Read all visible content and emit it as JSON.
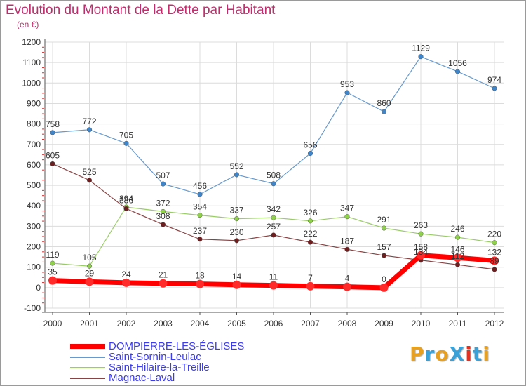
{
  "header": {
    "title": "Evolution du Montant de la Dette par Habitant",
    "unit": "(en €)"
  },
  "logo": {
    "text": "ProXiti",
    "colors": [
      "#e8a020",
      "#3aa0d8",
      "#e8a020",
      "#3aa0d8",
      "#e83020",
      "#3aa0d8",
      "#e8a020"
    ]
  },
  "chart_data": {
    "type": "line",
    "title": "Evolution du Montant de la Dette par Habitant",
    "ylabel": "(en €)",
    "xlabel": "",
    "x": [
      "2000",
      "2001",
      "2002",
      "2003",
      "2004",
      "2005",
      "2006",
      "2007",
      "2008",
      "2009",
      "2010",
      "2011",
      "2012"
    ],
    "ylim": [
      -100,
      1200
    ],
    "yticks": [
      "-100",
      "0",
      "100",
      "200",
      "300",
      "400",
      "500",
      "600",
      "700",
      "800",
      "900",
      "1000",
      "1100",
      "1200"
    ],
    "grid": true,
    "legend_position": "bottom-left",
    "series": [
      {
        "name": "DOMPIERRE-LES-ÉGLISES",
        "color": "#ff0000",
        "marker": "#ff2a2a",
        "width": 7,
        "values": [
          35,
          29,
          24,
          21,
          18,
          14,
          11,
          7,
          4,
          0,
          158,
          146,
          132
        ],
        "labels": [
          "35",
          "29",
          "24",
          "21",
          "18",
          "14",
          "11",
          "7",
          "4",
          "0",
          "158",
          "146",
          "132"
        ]
      },
      {
        "name": "Saint-Sornin-Leulac",
        "color": "#6699cc",
        "marker": "#3f85c9",
        "width": 1.2,
        "values": [
          758,
          772,
          705,
          507,
          456,
          552,
          508,
          656,
          953,
          860,
          1129,
          1056,
          974
        ],
        "labels": [
          "758",
          "772",
          "705",
          "507",
          "456",
          "552",
          "508",
          "656",
          "953",
          "860",
          "1129",
          "1056",
          "974"
        ]
      },
      {
        "name": "Saint-Hilaire-la-Treille",
        "color": "#99cc66",
        "marker": "#8fd24a",
        "width": 1.2,
        "values": [
          119,
          105,
          394,
          372,
          354,
          337,
          342,
          326,
          347,
          291,
          263,
          246,
          220
        ],
        "labels": [
          "119",
          "105",
          "394",
          "372",
          "354",
          "337",
          "342",
          "326",
          "347",
          "291",
          "263",
          "246",
          "220"
        ]
      },
      {
        "name": "Magnac-Laval",
        "color": "#884444",
        "marker": "#6e1e1e",
        "width": 1.2,
        "values": [
          605,
          525,
          386,
          308,
          237,
          230,
          257,
          222,
          187,
          157,
          134,
          112,
          89
        ],
        "labels": [
          "605",
          "525",
          "386",
          "308",
          "237",
          "230",
          "257",
          "222",
          "187",
          "157",
          "134",
          "112",
          "89"
        ]
      }
    ]
  }
}
